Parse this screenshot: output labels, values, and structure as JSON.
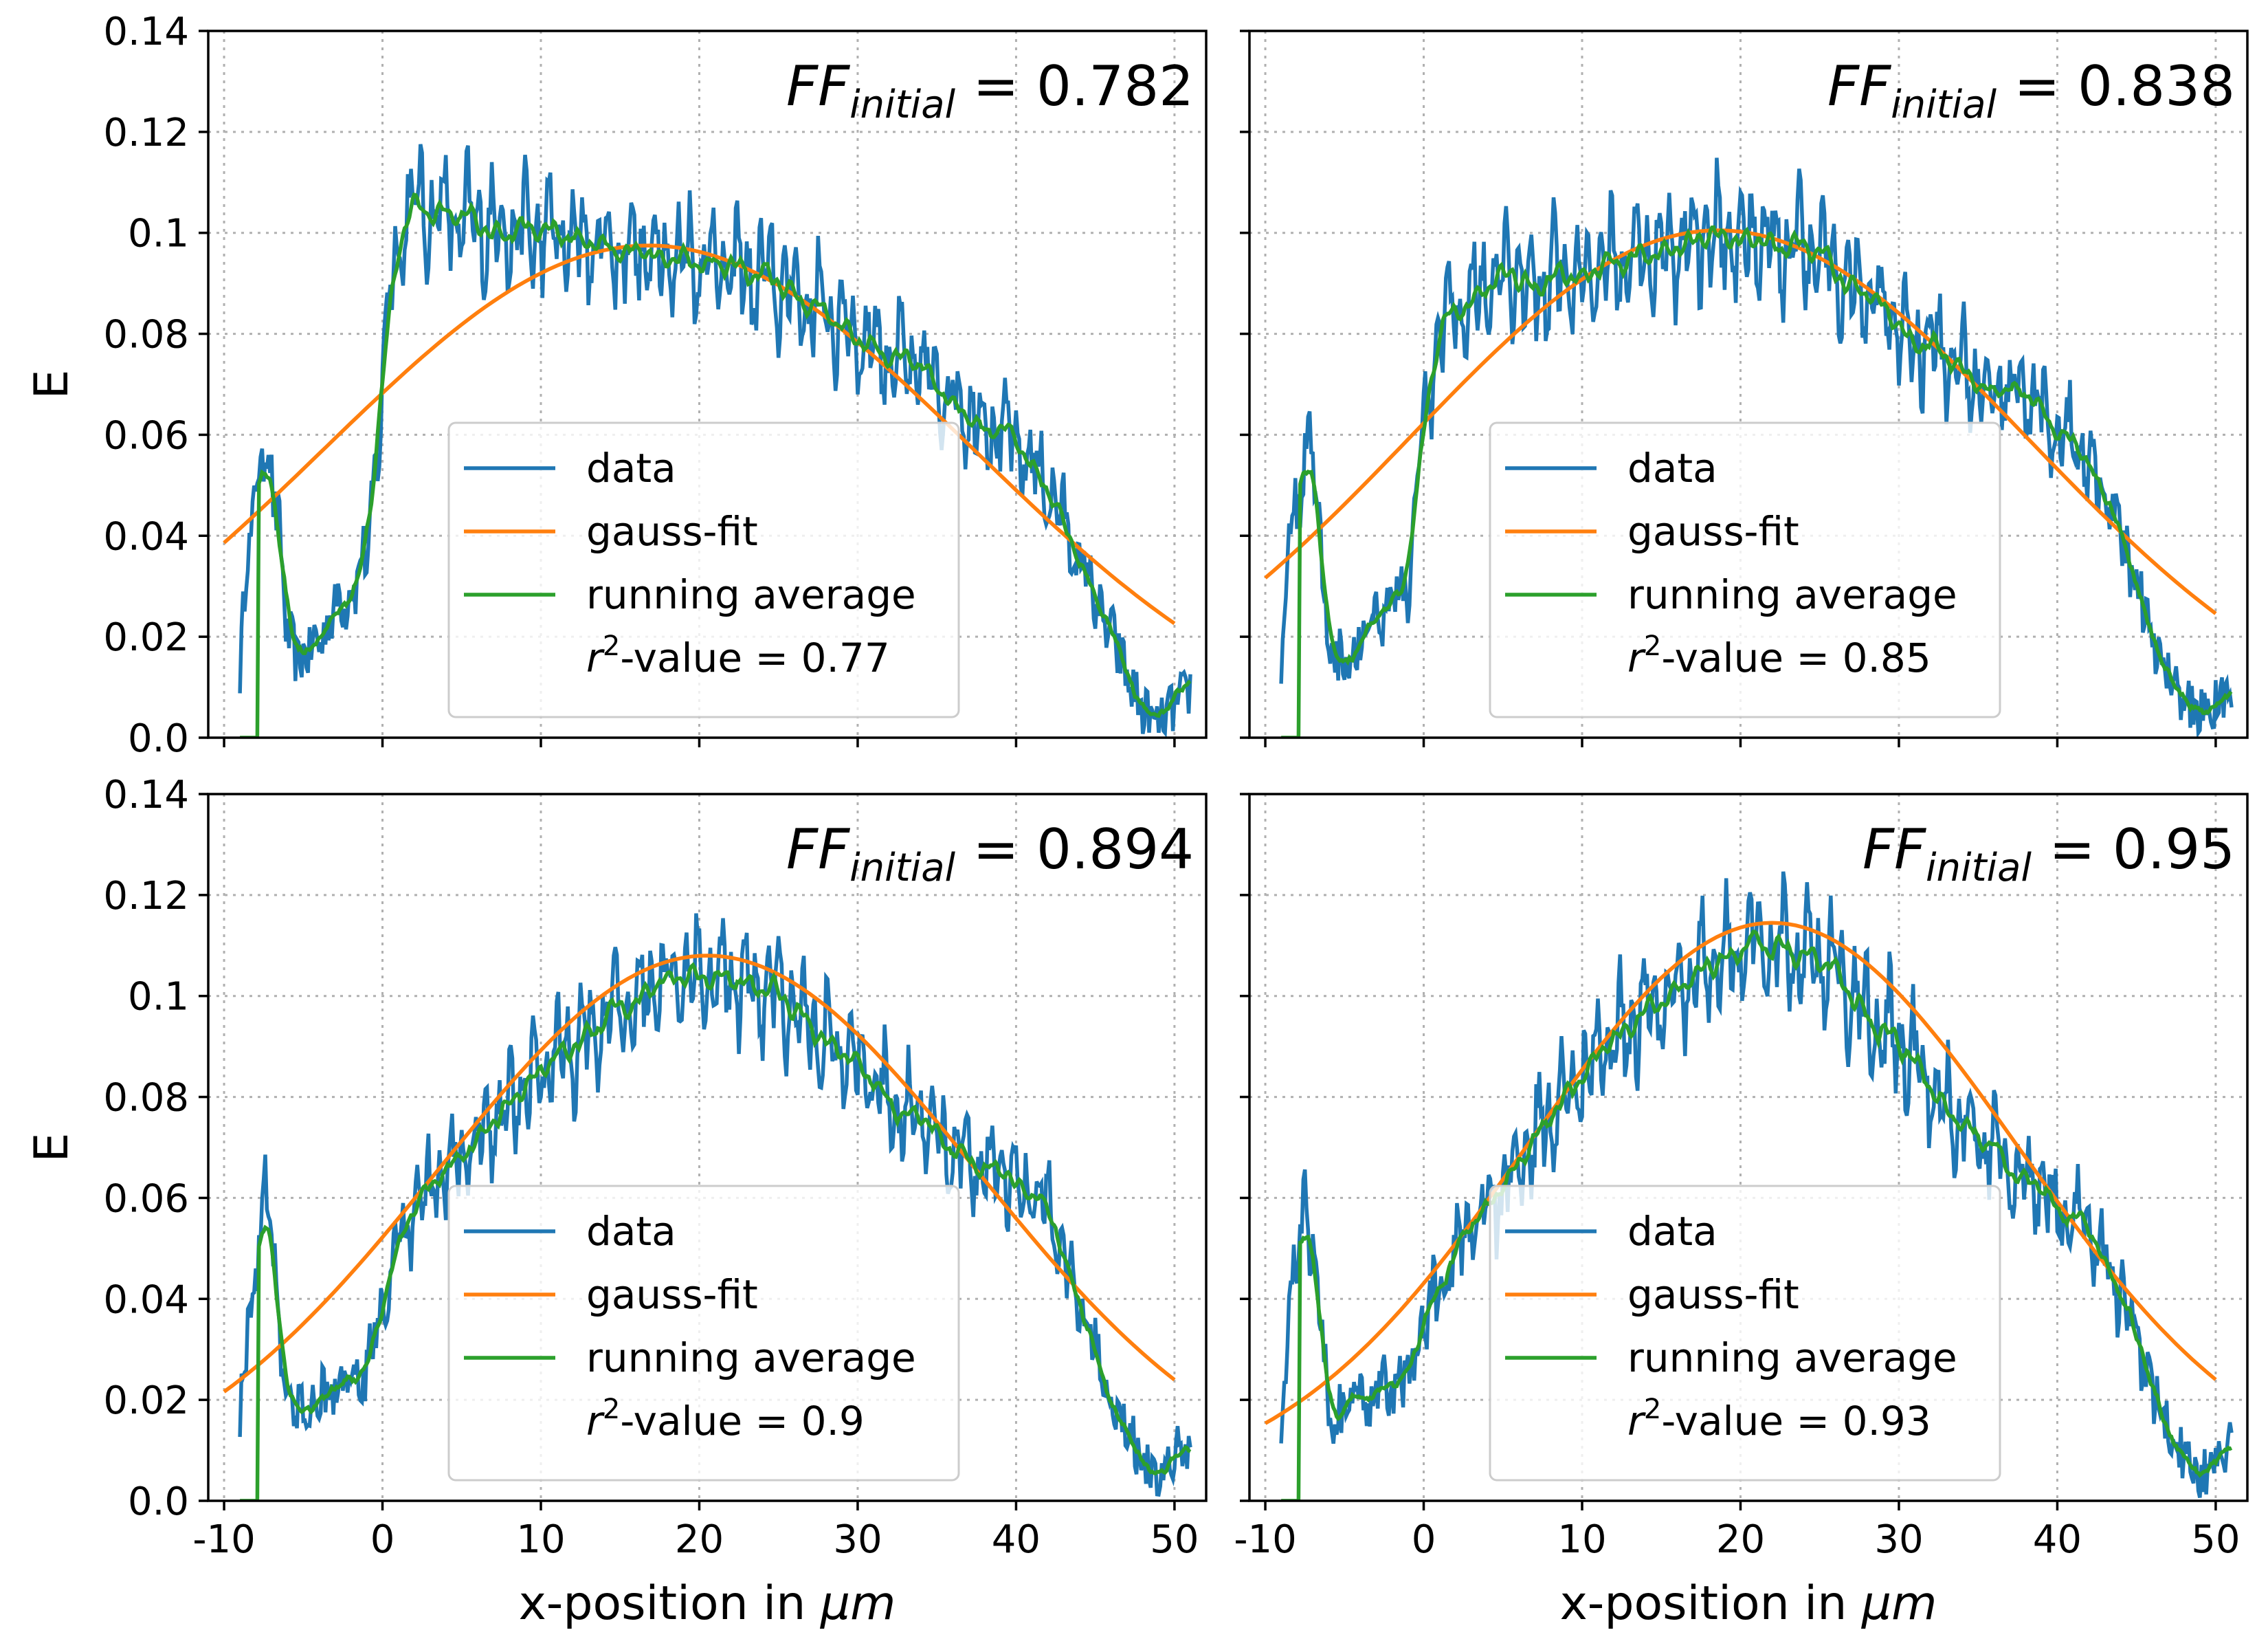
{
  "chart_data": [
    {
      "type": "line",
      "annotation": {
        "prefix": "FF",
        "sub": "initial",
        "value": "= 0.782"
      },
      "xlabel": "x-position in μm",
      "ylabel": "E",
      "xlim": [
        -11,
        52
      ],
      "ylim": [
        0.0,
        0.14
      ],
      "grid": true,
      "legend_loc": "center-right",
      "legend": [
        "data",
        "gauss-fit",
        "running average"
      ],
      "r2_label": "-value = 0.77",
      "gauss": {
        "a": 0.1025,
        "mu": 16.8,
        "sigma": 20.5,
        "offset": -0.005
      },
      "data_profile": [
        [
          -9,
          0.015
        ],
        [
          -8.5,
          0.038
        ],
        [
          -8,
          0.045
        ],
        [
          -7.5,
          0.06
        ],
        [
          -7,
          0.055
        ],
        [
          -6,
          0.02
        ],
        [
          -5,
          0.015
        ],
        [
          -3,
          0.025
        ],
        [
          -1,
          0.035
        ],
        [
          0,
          0.07
        ],
        [
          0.5,
          0.09
        ],
        [
          1.5,
          0.105
        ],
        [
          3,
          0.105
        ],
        [
          5,
          0.102
        ],
        [
          10,
          0.1
        ],
        [
          15,
          0.097
        ],
        [
          20,
          0.095
        ],
        [
          25,
          0.09
        ],
        [
          30,
          0.08
        ],
        [
          35,
          0.07
        ],
        [
          40,
          0.058
        ],
        [
          42,
          0.05
        ],
        [
          44,
          0.035
        ],
        [
          46,
          0.02
        ],
        [
          48,
          0.005
        ],
        [
          49,
          0.002
        ],
        [
          51,
          0.01
        ]
      ],
      "noise_amp": 0.012
    },
    {
      "type": "line",
      "annotation": {
        "prefix": "FF",
        "sub": "initial",
        "value": "= 0.838"
      },
      "xlabel": "x-position in μm",
      "ylabel": "",
      "xlim": [
        -11,
        52
      ],
      "ylim": [
        0.0,
        0.14
      ],
      "grid": true,
      "legend_loc": "center-right",
      "legend": [
        "data",
        "gauss-fit",
        "running average"
      ],
      "r2_label": "-value = 0.85",
      "gauss": {
        "a": 0.1045,
        "mu": 18.6,
        "sigma": 19.5,
        "offset": -0.004
      },
      "data_profile": [
        [
          -9,
          0.015
        ],
        [
          -8.5,
          0.038
        ],
        [
          -8,
          0.045
        ],
        [
          -7.5,
          0.06
        ],
        [
          -7,
          0.055
        ],
        [
          -6,
          0.02
        ],
        [
          -5,
          0.015
        ],
        [
          -3,
          0.025
        ],
        [
          -1,
          0.03
        ],
        [
          0,
          0.06
        ],
        [
          1,
          0.08
        ],
        [
          3,
          0.088
        ],
        [
          5,
          0.09
        ],
        [
          10,
          0.092
        ],
        [
          15,
          0.097
        ],
        [
          20,
          0.1
        ],
        [
          25,
          0.095
        ],
        [
          30,
          0.082
        ],
        [
          35,
          0.072
        ],
        [
          40,
          0.062
        ],
        [
          42,
          0.055
        ],
        [
          44,
          0.04
        ],
        [
          46,
          0.02
        ],
        [
          48,
          0.008
        ],
        [
          49,
          0.004
        ],
        [
          51,
          0.01
        ]
      ],
      "noise_amp": 0.012
    },
    {
      "type": "line",
      "annotation": {
        "prefix": "FF",
        "sub": "initial",
        "value": "= 0.894"
      },
      "xlabel": "x-position in μm",
      "ylabel": "E",
      "xlim": [
        -11,
        52
      ],
      "ylim": [
        0.0,
        0.14
      ],
      "grid": true,
      "legend_loc": "center-right",
      "legend": [
        "data",
        "gauss-fit",
        "running average"
      ],
      "r2_label": "-value = 0.9",
      "gauss": {
        "a": 0.108,
        "mu": 20.5,
        "sigma": 17.0,
        "offset": 0.0
      },
      "data_profile": [
        [
          -9,
          0.015
        ],
        [
          -8.5,
          0.038
        ],
        [
          -8,
          0.045
        ],
        [
          -7.5,
          0.06
        ],
        [
          -7,
          0.055
        ],
        [
          -6,
          0.018
        ],
        [
          -5,
          0.018
        ],
        [
          -3,
          0.022
        ],
        [
          -1,
          0.025
        ],
        [
          0,
          0.04
        ],
        [
          2,
          0.058
        ],
        [
          5,
          0.068
        ],
        [
          10,
          0.085
        ],
        [
          15,
          0.098
        ],
        [
          20,
          0.105
        ],
        [
          25,
          0.1
        ],
        [
          30,
          0.085
        ],
        [
          35,
          0.072
        ],
        [
          40,
          0.062
        ],
        [
          42,
          0.058
        ],
        [
          44,
          0.04
        ],
        [
          46,
          0.022
        ],
        [
          48,
          0.008
        ],
        [
          49,
          0.004
        ],
        [
          51,
          0.012
        ]
      ],
      "noise_amp": 0.011
    },
    {
      "type": "line",
      "annotation": {
        "prefix": "FF",
        "sub": "initial",
        "value": "= 0.95"
      },
      "xlabel": "x-position in μm",
      "ylabel": "",
      "xlim": [
        -11,
        52
      ],
      "ylim": [
        0.0,
        0.14
      ],
      "grid": true,
      "legend_loc": "center-right",
      "legend": [
        "data",
        "gauss-fit",
        "running average"
      ],
      "r2_label": "-value = 0.93",
      "gauss": {
        "a": 0.1125,
        "mu": 22.0,
        "sigma": 15.5,
        "offset": 0.002
      },
      "data_profile": [
        [
          -9,
          0.015
        ],
        [
          -8.5,
          0.038
        ],
        [
          -8,
          0.045
        ],
        [
          -7.5,
          0.06
        ],
        [
          -7,
          0.055
        ],
        [
          -6,
          0.018
        ],
        [
          -5,
          0.018
        ],
        [
          -3,
          0.022
        ],
        [
          -1,
          0.024
        ],
        [
          0,
          0.035
        ],
        [
          2,
          0.048
        ],
        [
          5,
          0.062
        ],
        [
          10,
          0.085
        ],
        [
          15,
          0.1
        ],
        [
          20,
          0.11
        ],
        [
          25,
          0.108
        ],
        [
          30,
          0.09
        ],
        [
          35,
          0.072
        ],
        [
          40,
          0.058
        ],
        [
          42,
          0.055
        ],
        [
          44,
          0.042
        ],
        [
          46,
          0.022
        ],
        [
          48,
          0.008
        ],
        [
          49,
          0.004
        ],
        [
          51,
          0.012
        ]
      ],
      "noise_amp": 0.012
    }
  ],
  "axes": {
    "yticks": [
      "0.0",
      "0.02",
      "0.04",
      "0.06",
      "0.08",
      "0.1",
      "0.12",
      "0.14"
    ],
    "xticks": [
      "-10",
      "0",
      "10",
      "20",
      "30",
      "40",
      "50"
    ],
    "xlabel_prefix": "x-position in ",
    "xlabel_unit": "μm",
    "ylabel": "E"
  },
  "legend": {
    "data": "data",
    "gauss": "gauss-fit",
    "running": "running average",
    "r2_symbol": "r",
    "r2_power": "2"
  },
  "colors": {
    "data": "#1f77b4",
    "gauss": "#ff7f0e",
    "running": "#2ca02c"
  }
}
